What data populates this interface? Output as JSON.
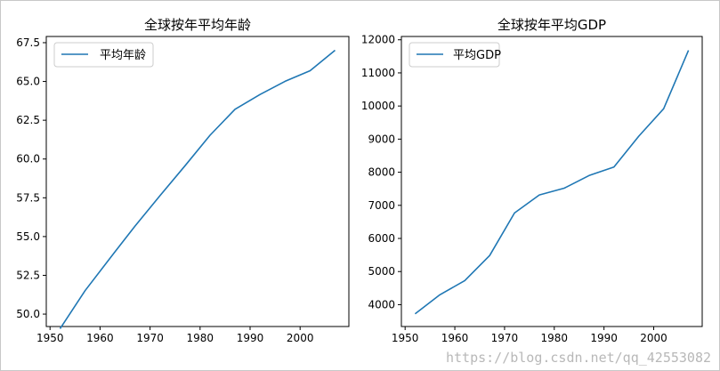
{
  "chart_data": [
    {
      "type": "line",
      "title": "全球按年平均年龄",
      "xlim": [
        1949.25,
        2009.75
      ],
      "ylim": [
        49.2,
        67.9
      ],
      "xticks": [
        1950,
        1960,
        1970,
        1980,
        1990,
        2000
      ],
      "yticks": [
        50.0,
        52.5,
        55.0,
        57.5,
        60.0,
        62.5,
        65.0,
        67.5
      ],
      "ytick_labels": [
        "50.0",
        "52.5",
        "55.0",
        "57.5",
        "60.0",
        "62.5",
        "65.0",
        "67.5"
      ],
      "grid": false,
      "legend": "top-left",
      "series": [
        {
          "name": "平均年龄",
          "color": "#1f77b4",
          "x": [
            1952,
            1957,
            1962,
            1967,
            1972,
            1977,
            1982,
            1987,
            1992,
            1997,
            2002,
            2007
          ],
          "y": [
            49.06,
            51.51,
            53.61,
            55.68,
            57.65,
            59.57,
            61.53,
            63.21,
            64.16,
            65.01,
            65.69,
            67.01
          ]
        }
      ]
    },
    {
      "type": "line",
      "title": "全球按年平均GDP",
      "xlim": [
        1949.25,
        2009.75
      ],
      "ylim": [
        3340,
        12100
      ],
      "xticks": [
        1950,
        1960,
        1970,
        1980,
        1990,
        2000
      ],
      "yticks": [
        4000,
        5000,
        6000,
        7000,
        8000,
        9000,
        10000,
        11000,
        12000
      ],
      "ytick_labels": [
        "4000",
        "5000",
        "6000",
        "7000",
        "8000",
        "9000",
        "10000",
        "11000",
        "12000"
      ],
      "grid": false,
      "legend": "top-left",
      "series": [
        {
          "name": "平均GDP",
          "color": "#1f77b4",
          "x": [
            1952,
            1957,
            1962,
            1967,
            1972,
            1977,
            1982,
            1987,
            1992,
            1997,
            2002,
            2007
          ],
          "y": [
            3725,
            4299,
            4726,
            5483,
            6770,
            7313,
            7519,
            7901,
            8159,
            9090,
            9917,
            11680
          ]
        }
      ]
    }
  ],
  "watermark": "https://blog.csdn.net/qq_42553082"
}
